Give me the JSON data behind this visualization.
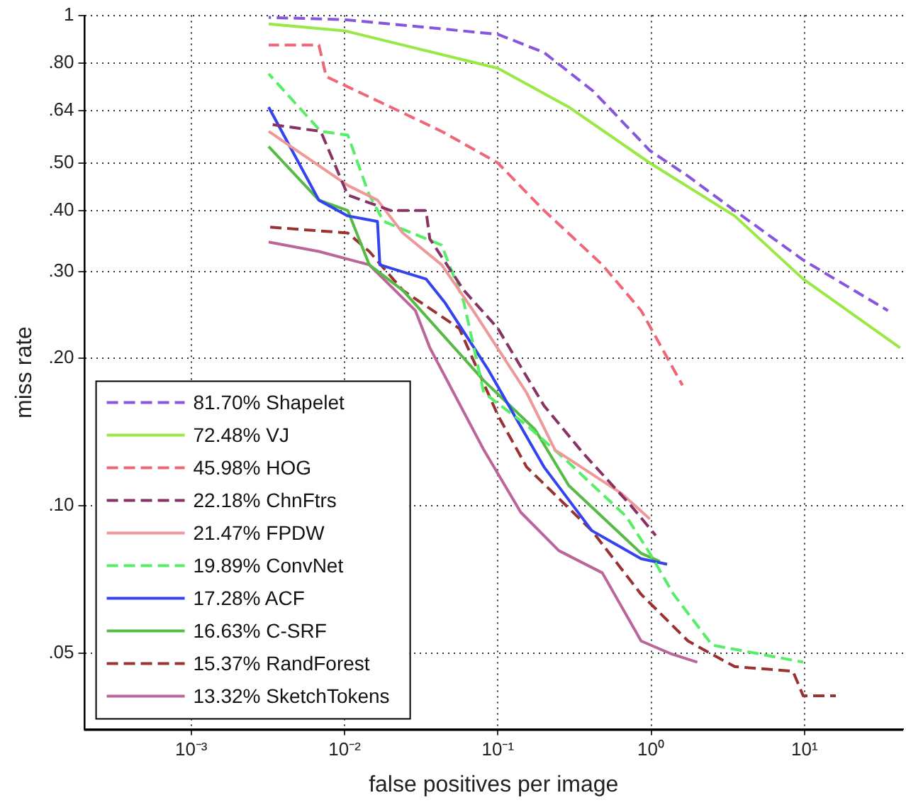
{
  "chart_data": {
    "type": "line",
    "xlabel": "false positives per image",
    "ylabel": "miss rate",
    "log": "xy",
    "grid": true,
    "legend": "bottom left",
    "marker": "none",
    "xlim": [
      0.0002,
      44
    ],
    "ylim": [
      0.035,
      1
    ],
    "xticks": [
      {
        "value": 0.001,
        "label": "10⁻³"
      },
      {
        "value": 0.01,
        "label": "10⁻²"
      },
      {
        "value": 0.1,
        "label": "10⁻¹"
      },
      {
        "value": 1,
        "label": "10⁰"
      },
      {
        "value": 10,
        "label": "10¹"
      }
    ],
    "yticks": [
      {
        "value": 0.05,
        "label": ".05"
      },
      {
        "value": 0.1,
        "label": ".10"
      },
      {
        "value": 0.2,
        "label": ".20"
      },
      {
        "value": 0.3,
        "label": ".30"
      },
      {
        "value": 0.4,
        "label": ".40"
      },
      {
        "value": 0.5,
        "label": ".50"
      },
      {
        "value": 0.64,
        "label": ".64"
      },
      {
        "value": 0.8,
        "label": ".80"
      },
      1
    ],
    "series": [
      {
        "name": "81.70% Shapelet",
        "color": "#8855dd",
        "line_style": "dashed",
        "x": [
          0.0032,
          0.01,
          0.1,
          0.2,
          0.42,
          0.98,
          1.74,
          3.5,
          9.8,
          35
        ],
        "values": [
          0.99,
          0.98,
          0.915,
          0.84,
          0.7,
          0.53,
          0.47,
          0.4,
          0.317,
          0.25
        ]
      },
      {
        "name": "72.48% VJ",
        "color": "#99e844",
        "line_style": "solid",
        "x": [
          0.0032,
          0.01,
          0.1,
          0.29,
          0.98,
          3.5,
          9.8,
          42
        ],
        "values": [
          0.96,
          0.93,
          0.78,
          0.65,
          0.5,
          0.39,
          0.29,
          0.21
        ]
      },
      {
        "name": "45.98% HOG",
        "color": "#ee6677",
        "line_style": "dashed",
        "x": [
          0.0032,
          0.0068,
          0.0076,
          0.02,
          0.043,
          0.1,
          0.2,
          0.48,
          0.86,
          1.6
        ],
        "values": [
          0.87,
          0.87,
          0.75,
          0.65,
          0.58,
          0.5,
          0.4,
          0.31,
          0.25,
          0.176
        ]
      },
      {
        "name": "22.18% ChnFtrs",
        "color": "#883366",
        "line_style": "dashed",
        "x": [
          0.0032,
          0.007,
          0.0105,
          0.02,
          0.034,
          0.036,
          0.06,
          0.1,
          0.2,
          0.36,
          0.74,
          1.07
        ],
        "values": [
          0.6,
          0.58,
          0.43,
          0.4,
          0.4,
          0.35,
          0.275,
          0.23,
          0.16,
          0.128,
          0.1,
          0.087
        ]
      },
      {
        "name": "21.47% FPDW",
        "color": "#ee9999",
        "line_style": "solid",
        "x": [
          0.0032,
          0.0105,
          0.0164,
          0.024,
          0.043,
          0.069,
          0.154,
          0.236,
          0.64,
          0.98
        ],
        "values": [
          0.58,
          0.45,
          0.42,
          0.36,
          0.31,
          0.25,
          0.17,
          0.13,
          0.106,
          0.094
        ]
      },
      {
        "name": "19.89% ConvNet",
        "color": "#55ee66",
        "line_style": "dashed",
        "x": [
          0.0032,
          0.007,
          0.0105,
          0.0145,
          0.018,
          0.043,
          0.06,
          0.081,
          0.154,
          0.27,
          0.69,
          0.98,
          1.4,
          2.5,
          9.8
        ],
        "values": [
          0.76,
          0.58,
          0.57,
          0.43,
          0.38,
          0.34,
          0.26,
          0.17,
          0.146,
          0.125,
          0.095,
          0.08,
          0.066,
          0.052,
          0.048
        ]
      },
      {
        "name": "17.28% ACF",
        "color": "#3344ee",
        "line_style": "solid",
        "x": [
          0.0032,
          0.0068,
          0.0105,
          0.0164,
          0.017,
          0.034,
          0.045,
          0.086,
          0.2,
          0.41,
          0.86,
          1.27
        ],
        "values": [
          0.65,
          0.42,
          0.39,
          0.38,
          0.31,
          0.29,
          0.26,
          0.19,
          0.12,
          0.089,
          0.078,
          0.076
        ]
      },
      {
        "name": "16.63% C-SRF",
        "color": "#55bb44",
        "line_style": "solid",
        "x": [
          0.0032,
          0.0068,
          0.0105,
          0.0145,
          0.024,
          0.081,
          0.175,
          0.29,
          0.86,
          1.14
        ],
        "values": [
          0.54,
          0.42,
          0.4,
          0.31,
          0.275,
          0.18,
          0.143,
          0.11,
          0.08,
          0.077
        ]
      },
      {
        "name": "15.37% RandForest",
        "color": "#993333",
        "line_style": "dashed",
        "x": [
          0.0032,
          0.0105,
          0.0145,
          0.024,
          0.056,
          0.1,
          0.154,
          0.41,
          0.86,
          1.74,
          3.5,
          8.4,
          9.8,
          16
        ],
        "values": [
          0.37,
          0.36,
          0.33,
          0.275,
          0.23,
          0.153,
          0.12,
          0.089,
          0.066,
          0.053,
          0.047,
          0.046,
          0.041,
          0.041
        ]
      },
      {
        "name": "13.32% SketchTokens",
        "color": "#bb6699",
        "line_style": "solid",
        "x": [
          0.0032,
          0.0068,
          0.0145,
          0.029,
          0.036,
          0.081,
          0.141,
          0.25,
          0.48,
          0.86,
          1.33,
          2.0
        ],
        "values": [
          0.345,
          0.33,
          0.31,
          0.25,
          0.21,
          0.13,
          0.097,
          0.081,
          0.073,
          0.053,
          0.05,
          0.048
        ]
      }
    ]
  }
}
